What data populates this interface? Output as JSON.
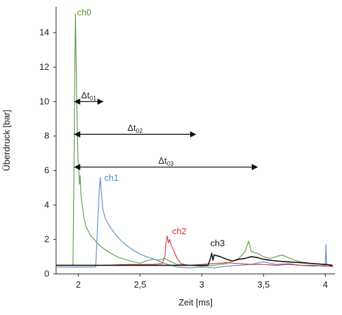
{
  "chart_data": {
    "type": "line",
    "title": "",
    "xlabel": "Zeit [ms]",
    "ylabel": "Überdruck [bar]",
    "xlim": [
      1.82,
      4.08
    ],
    "ylim": [
      0,
      15.5
    ],
    "xticks": [
      {
        "v": 2,
        "label": "2"
      },
      {
        "v": 2.5,
        "label": "2,5"
      },
      {
        "v": 3,
        "label": "3"
      },
      {
        "v": 3.5,
        "label": "3,5"
      },
      {
        "v": 4,
        "label": "4"
      }
    ],
    "yticks": [
      {
        "v": 0,
        "label": "0"
      },
      {
        "v": 2,
        "label": "2"
      },
      {
        "v": 4,
        "label": "4"
      },
      {
        "v": 6,
        "label": "6"
      },
      {
        "v": 8,
        "label": "8"
      },
      {
        "v": 10,
        "label": "10"
      },
      {
        "v": 12,
        "label": "12"
      },
      {
        "v": 14,
        "label": "14"
      }
    ],
    "grid": false,
    "series": [
      {
        "name": "ch0",
        "color": "#4e9a3a",
        "label_at": {
          "x": 1.99,
          "y": 15.0
        },
        "points": [
          [
            1.82,
            0.5
          ],
          [
            1.9,
            0.5
          ],
          [
            1.95,
            0.5
          ],
          [
            1.957,
            0.55
          ],
          [
            1.965,
            6.0
          ],
          [
            1.972,
            12.0
          ],
          [
            1.977,
            15.1
          ],
          [
            1.982,
            12.5
          ],
          [
            1.987,
            10.3
          ],
          [
            1.992,
            8.3
          ],
          [
            1.997,
            6.6
          ],
          [
            2.002,
            6.4
          ],
          [
            2.006,
            5.8
          ],
          [
            2.01,
            5.2
          ],
          [
            2.015,
            5.7
          ],
          [
            2.02,
            4.7
          ],
          [
            2.03,
            4.1
          ],
          [
            2.045,
            3.3
          ],
          [
            2.06,
            2.8
          ],
          [
            2.08,
            2.5
          ],
          [
            2.1,
            2.2
          ],
          [
            2.12,
            2.1
          ],
          [
            2.15,
            1.8
          ],
          [
            2.2,
            1.5
          ],
          [
            2.25,
            1.25
          ],
          [
            2.3,
            1.05
          ],
          [
            2.35,
            0.9
          ],
          [
            2.4,
            0.8
          ],
          [
            2.45,
            0.7
          ],
          [
            2.5,
            0.62
          ],
          [
            2.55,
            0.75
          ],
          [
            2.6,
            0.85
          ],
          [
            2.65,
            0.8
          ],
          [
            2.7,
            0.9
          ],
          [
            2.75,
            0.7
          ],
          [
            2.8,
            0.55
          ],
          [
            2.9,
            0.5
          ],
          [
            3.0,
            0.45
          ],
          [
            3.1,
            0.5
          ],
          [
            3.2,
            0.6
          ],
          [
            3.3,
            0.9
          ],
          [
            3.35,
            1.3
          ],
          [
            3.38,
            1.9
          ],
          [
            3.4,
            1.3
          ],
          [
            3.45,
            1.2
          ],
          [
            3.5,
            1.0
          ],
          [
            3.55,
            0.9
          ],
          [
            3.6,
            1.0
          ],
          [
            3.65,
            1.1
          ],
          [
            3.7,
            0.95
          ],
          [
            3.75,
            0.8
          ],
          [
            3.8,
            0.7
          ],
          [
            3.9,
            0.6
          ],
          [
            4.0,
            0.55
          ],
          [
            4.04,
            0.5
          ],
          [
            4.06,
            0.4
          ]
        ]
      },
      {
        "name": "ch1",
        "color": "#5b87c9",
        "label_at": {
          "x": 2.21,
          "y": 5.4
        },
        "points": [
          [
            1.82,
            0.4
          ],
          [
            2.0,
            0.4
          ],
          [
            2.1,
            0.4
          ],
          [
            2.14,
            0.4
          ],
          [
            2.15,
            1.8
          ],
          [
            2.16,
            3.5
          ],
          [
            2.17,
            4.9
          ],
          [
            2.178,
            5.6
          ],
          [
            2.19,
            4.4
          ],
          [
            2.2,
            3.7
          ],
          [
            2.22,
            3.2
          ],
          [
            2.25,
            2.8
          ],
          [
            2.3,
            2.3
          ],
          [
            2.35,
            1.9
          ],
          [
            2.4,
            1.6
          ],
          [
            2.45,
            1.35
          ],
          [
            2.5,
            1.15
          ],
          [
            2.55,
            1.0
          ],
          [
            2.6,
            0.9
          ],
          [
            2.65,
            0.75
          ],
          [
            2.7,
            0.6
          ],
          [
            2.75,
            0.5
          ],
          [
            2.8,
            0.4
          ],
          [
            2.9,
            0.35
          ],
          [
            3.0,
            0.4
          ],
          [
            3.1,
            0.35
          ],
          [
            3.2,
            0.45
          ],
          [
            3.3,
            0.5
          ],
          [
            3.4,
            0.55
          ],
          [
            3.5,
            0.7
          ],
          [
            3.6,
            0.55
          ],
          [
            3.7,
            0.6
          ],
          [
            3.8,
            0.5
          ],
          [
            3.9,
            0.45
          ],
          [
            4.0,
            0.5
          ],
          [
            4.005,
            1.7
          ],
          [
            4.01,
            0.6
          ],
          [
            4.04,
            0.45
          ],
          [
            4.06,
            0.4
          ]
        ]
      },
      {
        "name": "ch2",
        "color": "#cc3333",
        "label_at": {
          "x": 2.76,
          "y": 2.3
        },
        "points": [
          [
            1.82,
            0.5
          ],
          [
            2.0,
            0.5
          ],
          [
            2.2,
            0.5
          ],
          [
            2.4,
            0.55
          ],
          [
            2.6,
            0.55
          ],
          [
            2.68,
            0.6
          ],
          [
            2.7,
            1.0
          ],
          [
            2.71,
            1.8
          ],
          [
            2.72,
            2.2
          ],
          [
            2.73,
            1.8
          ],
          [
            2.74,
            2.0
          ],
          [
            2.75,
            1.7
          ],
          [
            2.77,
            1.4
          ],
          [
            2.8,
            0.9
          ],
          [
            2.83,
            0.6
          ],
          [
            2.86,
            0.55
          ],
          [
            2.9,
            0.5
          ],
          [
            3.0,
            0.55
          ],
          [
            3.1,
            0.6
          ],
          [
            3.2,
            0.65
          ],
          [
            3.3,
            0.6
          ],
          [
            3.4,
            0.55
          ],
          [
            3.5,
            0.55
          ],
          [
            3.6,
            0.5
          ],
          [
            3.7,
            0.55
          ],
          [
            3.8,
            0.5
          ],
          [
            3.9,
            0.5
          ],
          [
            4.0,
            0.45
          ],
          [
            4.06,
            0.45
          ]
        ]
      },
      {
        "name": "ch3",
        "color": "#111111",
        "label_at": {
          "x": 3.07,
          "y": 1.6
        },
        "points": [
          [
            1.82,
            0.5
          ],
          [
            2.0,
            0.5
          ],
          [
            2.2,
            0.5
          ],
          [
            2.4,
            0.5
          ],
          [
            2.6,
            0.5
          ],
          [
            2.8,
            0.5
          ],
          [
            3.0,
            0.5
          ],
          [
            3.05,
            0.5
          ],
          [
            3.07,
            0.9
          ],
          [
            3.08,
            1.2
          ],
          [
            3.09,
            0.8
          ],
          [
            3.1,
            1.1
          ],
          [
            3.15,
            1.0
          ],
          [
            3.2,
            0.85
          ],
          [
            3.25,
            0.75
          ],
          [
            3.3,
            0.85
          ],
          [
            3.35,
            0.9
          ],
          [
            3.4,
            1.0
          ],
          [
            3.45,
            0.95
          ],
          [
            3.5,
            0.85
          ],
          [
            3.55,
            0.8
          ],
          [
            3.6,
            0.75
          ],
          [
            3.7,
            0.7
          ],
          [
            3.8,
            0.65
          ],
          [
            3.9,
            0.6
          ],
          [
            4.0,
            0.55
          ],
          [
            4.06,
            0.5
          ]
        ]
      }
    ],
    "annotations": [
      {
        "base": "Δt",
        "sub": "01",
        "x_from": 1.97,
        "x_to": 2.2,
        "y": 10.0
      },
      {
        "base": "Δt",
        "sub": "02",
        "x_from": 1.97,
        "x_to": 2.95,
        "y": 8.1
      },
      {
        "base": "Δt",
        "sub": "03",
        "x_from": 1.97,
        "x_to": 3.45,
        "y": 6.2
      }
    ]
  }
}
